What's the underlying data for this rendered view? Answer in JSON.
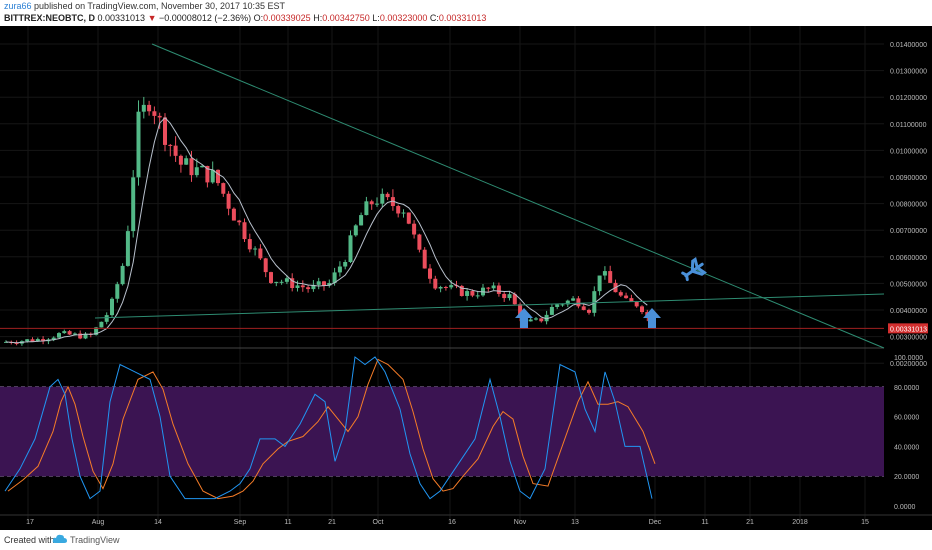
{
  "header": {
    "author": "zura66",
    "published_text": "published on TradingView.com, November 30, 2017 10:35 EST",
    "symbol": "BITTREX:NEOBTC, D",
    "last": "0.00331013",
    "change_arrow": "▼",
    "change": "−0.00008012 (−2.36%)",
    "o_label": "O:",
    "o_value": "0.00339025",
    "h_label": "H:",
    "h_value": "0.00342750",
    "l_label": "L:",
    "l_value": "0.00323000",
    "c_label": "C:",
    "c_value": "0.00331013"
  },
  "price_axis": {
    "ticks": [
      {
        "value": 0.014,
        "label": "0.01400000"
      },
      {
        "value": 0.013,
        "label": "0.01300000"
      },
      {
        "value": 0.012,
        "label": "0.01200000"
      },
      {
        "value": 0.011,
        "label": "0.01100000"
      },
      {
        "value": 0.01,
        "label": "0.01000000"
      },
      {
        "value": 0.009,
        "label": "0.00900000"
      },
      {
        "value": 0.008,
        "label": "0.00800000"
      },
      {
        "value": 0.007,
        "label": "0.00700000"
      },
      {
        "value": 0.006,
        "label": "0.00600000"
      },
      {
        "value": 0.005,
        "label": "0.00500000"
      },
      {
        "value": 0.004,
        "label": "0.00400000"
      },
      {
        "value": 0.003,
        "label": "0.00300000"
      },
      {
        "value": 0.002,
        "label": "0.00200000"
      }
    ],
    "current_label": "0.00331013",
    "current_value": 0.00331013
  },
  "osc_axis": {
    "ticks": [
      {
        "value": 100,
        "label": "100.0000"
      },
      {
        "value": 80,
        "label": "80.0000"
      },
      {
        "value": 60,
        "label": "60.0000"
      },
      {
        "value": 40,
        "label": "40.0000"
      },
      {
        "value": 20,
        "label": "20.0000"
      },
      {
        "value": 0,
        "label": "0.0000"
      }
    ]
  },
  "time_axis": {
    "labels": [
      "17",
      "Aug",
      "14",
      "Sep",
      "11",
      "21",
      "Oct",
      "16",
      "Nov",
      "13",
      "Dec",
      "11",
      "21",
      "2018",
      "15"
    ]
  },
  "footer": {
    "created": "Created with",
    "brand": "TradingView"
  },
  "colors": {
    "up": "#53b987",
    "down": "#eb4d5c",
    "trendline": "#2e8c72",
    "ma": "#b8c0cc",
    "stoch_k": "#2196f3",
    "stoch_d": "#f57c28",
    "osc_band": "#3b1452",
    "arrow": "#4a90d9"
  }
}
